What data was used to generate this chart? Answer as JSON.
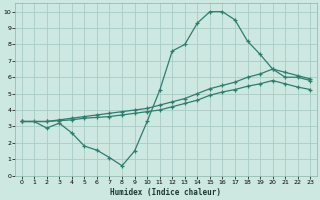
{
  "xlabel": "Humidex (Indice chaleur)",
  "bg_color": "#cce8e0",
  "grid_color": "#aaccc4",
  "line_color": "#2e7d6e",
  "xlim": [
    -0.5,
    23.5
  ],
  "ylim": [
    0,
    10.5
  ],
  "xticks": [
    0,
    1,
    2,
    3,
    4,
    5,
    6,
    7,
    8,
    9,
    10,
    11,
    12,
    13,
    14,
    15,
    16,
    17,
    18,
    19,
    20,
    21,
    22,
    23
  ],
  "yticks": [
    0,
    1,
    2,
    3,
    4,
    5,
    6,
    7,
    8,
    9,
    10
  ],
  "line1_x": [
    0,
    1,
    2,
    3,
    4,
    5,
    6,
    7,
    8,
    9,
    10,
    11,
    12,
    13,
    14,
    15,
    16,
    17,
    18,
    19,
    20,
    21,
    22,
    23
  ],
  "line1_y": [
    3.3,
    3.3,
    2.9,
    3.2,
    2.6,
    1.8,
    1.55,
    1.1,
    0.6,
    1.5,
    3.3,
    5.2,
    7.6,
    8.0,
    9.3,
    10.0,
    10.0,
    9.5,
    8.2,
    7.4,
    6.5,
    6.0,
    6.0,
    5.8
  ],
  "line2_x": [
    0,
    2,
    3,
    4,
    5,
    6,
    7,
    8,
    9,
    10,
    11,
    12,
    13,
    14,
    15,
    16,
    17,
    18,
    19,
    20,
    21,
    22,
    23
  ],
  "line2_y": [
    3.3,
    3.3,
    3.4,
    3.5,
    3.6,
    3.7,
    3.8,
    3.9,
    4.0,
    4.1,
    4.3,
    4.5,
    4.7,
    5.0,
    5.3,
    5.5,
    5.7,
    6.0,
    6.2,
    6.5,
    6.3,
    6.1,
    5.9
  ],
  "line3_x": [
    0,
    2,
    3,
    4,
    5,
    6,
    7,
    8,
    9,
    10,
    11,
    12,
    13,
    14,
    15,
    16,
    17,
    18,
    19,
    20,
    21,
    22,
    23
  ],
  "line3_y": [
    3.3,
    3.3,
    3.35,
    3.4,
    3.5,
    3.55,
    3.6,
    3.7,
    3.8,
    3.9,
    4.0,
    4.2,
    4.4,
    4.6,
    4.9,
    5.1,
    5.25,
    5.45,
    5.6,
    5.8,
    5.6,
    5.4,
    5.25
  ]
}
